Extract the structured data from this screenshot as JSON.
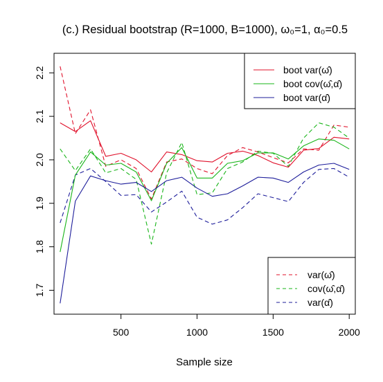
{
  "chart_data": {
    "type": "line",
    "title": "(c.) Residual bootstrap (R=1000, B=1000), ω₀=1, α₀=0.5",
    "xlabel": "Sample size",
    "ylabel": "",
    "xlim": [
      60,
      2040
    ],
    "ylim": [
      1.645,
      2.245
    ],
    "xticks": [
      500,
      1000,
      1500,
      2000
    ],
    "xtick_labels": [
      "500",
      "1000",
      "1500",
      "2000"
    ],
    "yticks": [
      1.7,
      1.8,
      1.9,
      2.0,
      2.1,
      2.2
    ],
    "ytick_labels": [
      "1.7",
      "1.8",
      "1.9",
      "2.0",
      "2.1",
      "2.2"
    ],
    "grid": false,
    "x": [
      100,
      200,
      300,
      400,
      500,
      600,
      700,
      800,
      900,
      1000,
      1100,
      1200,
      1300,
      1400,
      1500,
      1600,
      1700,
      1800,
      1900,
      2000
    ],
    "series": [
      {
        "name": "boot var(ω̂)",
        "color": "#e0102a",
        "dash": "solid",
        "values": [
          2.085,
          2.065,
          2.09,
          2.008,
          2.015,
          2.0,
          1.972,
          2.018,
          2.012,
          1.998,
          1.995,
          2.015,
          2.02,
          2.01,
          1.993,
          1.983,
          2.022,
          2.026,
          2.052,
          2.048
        ]
      },
      {
        "name": "boot cov(ω̂,α̂)",
        "color": "#17b417",
        "dash": "solid",
        "values": [
          1.788,
          1.965,
          2.018,
          1.988,
          1.992,
          1.972,
          1.906,
          1.992,
          2.028,
          1.958,
          1.958,
          1.992,
          1.998,
          2.016,
          2.016,
          2.002,
          2.032,
          2.048,
          2.045,
          2.025
        ]
      },
      {
        "name": "boot var(α̂)",
        "color": "#1c1c9a",
        "dash": "solid",
        "values": [
          1.67,
          1.905,
          1.963,
          1.952,
          1.944,
          1.948,
          1.927,
          1.952,
          1.96,
          1.935,
          1.916,
          1.922,
          1.94,
          1.96,
          1.958,
          1.948,
          1.972,
          1.988,
          1.992,
          1.978
        ]
      },
      {
        "name": "var(ω̂)",
        "color": "#e0102a",
        "dash": "dashed",
        "values": [
          2.215,
          2.06,
          2.115,
          1.985,
          2.0,
          1.98,
          1.91,
          1.995,
          2.002,
          1.98,
          1.968,
          2.01,
          2.028,
          2.018,
          2.005,
          1.993,
          2.025,
          2.022,
          2.08,
          2.075
        ]
      },
      {
        "name": "cov(ω̂,α̂)",
        "color": "#17b417",
        "dash": "dashed",
        "values": [
          2.025,
          1.975,
          2.025,
          1.97,
          1.98,
          1.955,
          1.806,
          1.97,
          2.04,
          1.92,
          1.924,
          1.98,
          1.995,
          2.02,
          2.015,
          1.985,
          2.05,
          2.085,
          2.075,
          2.05
        ]
      },
      {
        "name": "var(α̂)",
        "color": "#1c1c9a",
        "dash": "dashed",
        "values": [
          1.855,
          1.965,
          1.98,
          1.95,
          1.918,
          1.92,
          1.88,
          1.903,
          1.928,
          1.868,
          1.852,
          1.862,
          1.89,
          1.922,
          1.913,
          1.904,
          1.948,
          1.978,
          1.98,
          1.96
        ]
      }
    ],
    "legends": [
      {
        "position": "top-right",
        "entries": [
          "boot var(ω̂)",
          "boot cov(ω̂,α̂)",
          "boot var(α̂)"
        ]
      },
      {
        "position": "bottom-right",
        "entries": [
          "var(ω̂)",
          "cov(ω̂,α̂)",
          "var(α̂)"
        ]
      }
    ]
  }
}
